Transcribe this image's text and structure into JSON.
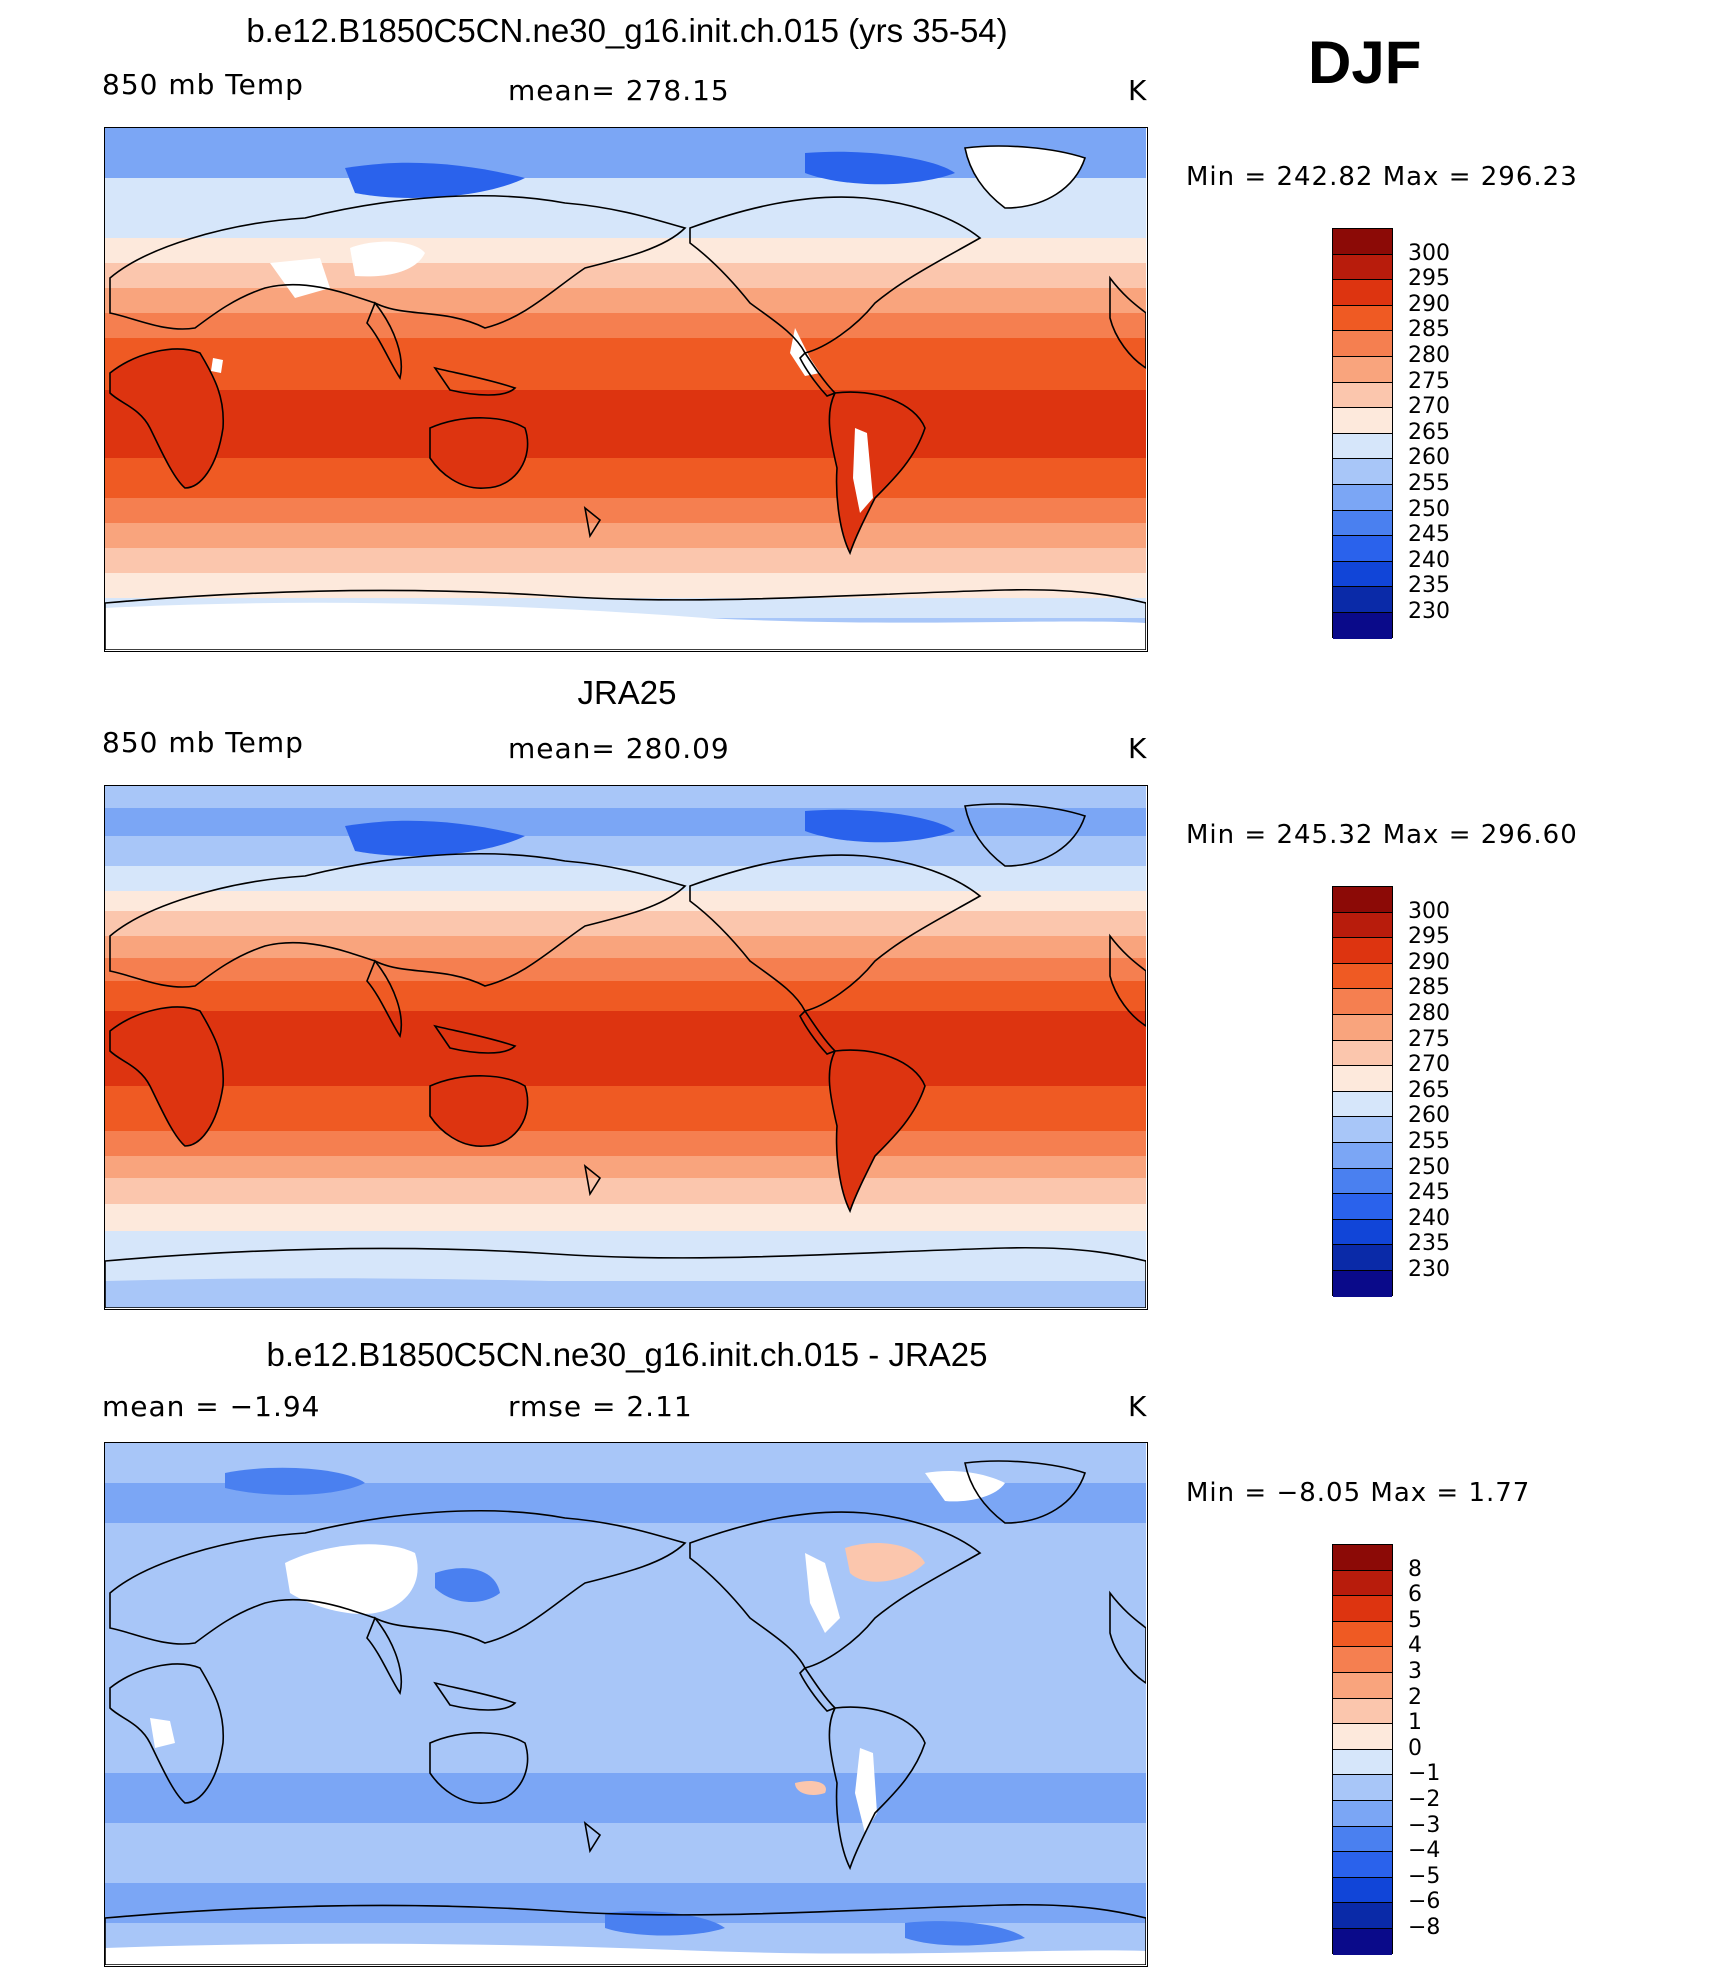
{
  "header": {
    "season": "DJF"
  },
  "colors": {
    "abs_scale": [
      "#0a0a8a",
      "#0a2aa8",
      "#1145d8",
      "#2a62ec",
      "#4a80f0",
      "#7ba6f5",
      "#a8c6f8",
      "#d6e6fa",
      "#fde9dc",
      "#fbc6ad",
      "#f9a47d",
      "#f57f50",
      "#ef5a23",
      "#dd3410",
      "#b81c0c",
      "#8c0a06"
    ],
    "land_missing": "#ffffff"
  },
  "panels": [
    {
      "title": "b.e12.B1850C5CN.ne30_g16.init.ch.015 (yrs 35-54)",
      "left_label": "850 mb Temp",
      "center_label": "mean=  278.15",
      "units": "K",
      "stats": "Min  =  242.82  Max  =  296.23"
    },
    {
      "title": "JRA25",
      "left_label": "850 mb Temp",
      "center_label": "mean=  280.09",
      "units": "K",
      "stats": "Min  =  245.32  Max  =  296.60"
    },
    {
      "title": "b.e12.B1850C5CN.ne30_g16.init.ch.015 - JRA25",
      "left_label": "mean  =    −1.94",
      "center_label": "rmse  =     2.11",
      "units": "K",
      "stats": "Min  =    −8.05  Max  =     1.77"
    }
  ],
  "chart_data": [
    {
      "type": "heatmap",
      "title": "b.e12.B1850C5CN.ne30_g16.init.ch.015 (yrs 35-54)",
      "variable": "850 mb Temp",
      "units": "K",
      "mean": 278.15,
      "min": 242.82,
      "max": 296.23,
      "contour_levels": [
        230,
        235,
        240,
        245,
        250,
        255,
        260,
        265,
        270,
        275,
        280,
        285,
        290,
        295,
        300
      ],
      "colorbar_labels": [
        "300",
        "295",
        "290",
        "285",
        "280",
        "275",
        "270",
        "265",
        "260",
        "255",
        "250",
        "245",
        "240",
        "235",
        "230"
      ]
    },
    {
      "type": "heatmap",
      "title": "JRA25",
      "variable": "850 mb Temp",
      "units": "K",
      "mean": 280.09,
      "min": 245.32,
      "max": 296.6,
      "contour_levels": [
        230,
        235,
        240,
        245,
        250,
        255,
        260,
        265,
        270,
        275,
        280,
        285,
        290,
        295,
        300
      ],
      "colorbar_labels": [
        "300",
        "295",
        "290",
        "285",
        "280",
        "275",
        "270",
        "265",
        "260",
        "255",
        "250",
        "245",
        "240",
        "235",
        "230"
      ]
    },
    {
      "type": "heatmap",
      "title": "b.e12.B1850C5CN.ne30_g16.init.ch.015 - JRA25",
      "units": "K",
      "mean": -1.94,
      "rmse": 2.11,
      "min": -8.05,
      "max": 1.77,
      "contour_levels": [
        -8,
        -6,
        -5,
        -4,
        -3,
        -2,
        -1,
        0,
        1,
        2,
        3,
        4,
        5,
        6,
        8
      ],
      "colorbar_labels": [
        "8",
        "6",
        "5",
        "4",
        "3",
        "2",
        "1",
        "0",
        "−1",
        "−2",
        "−3",
        "−4",
        "−5",
        "−6",
        "−8"
      ]
    }
  ]
}
